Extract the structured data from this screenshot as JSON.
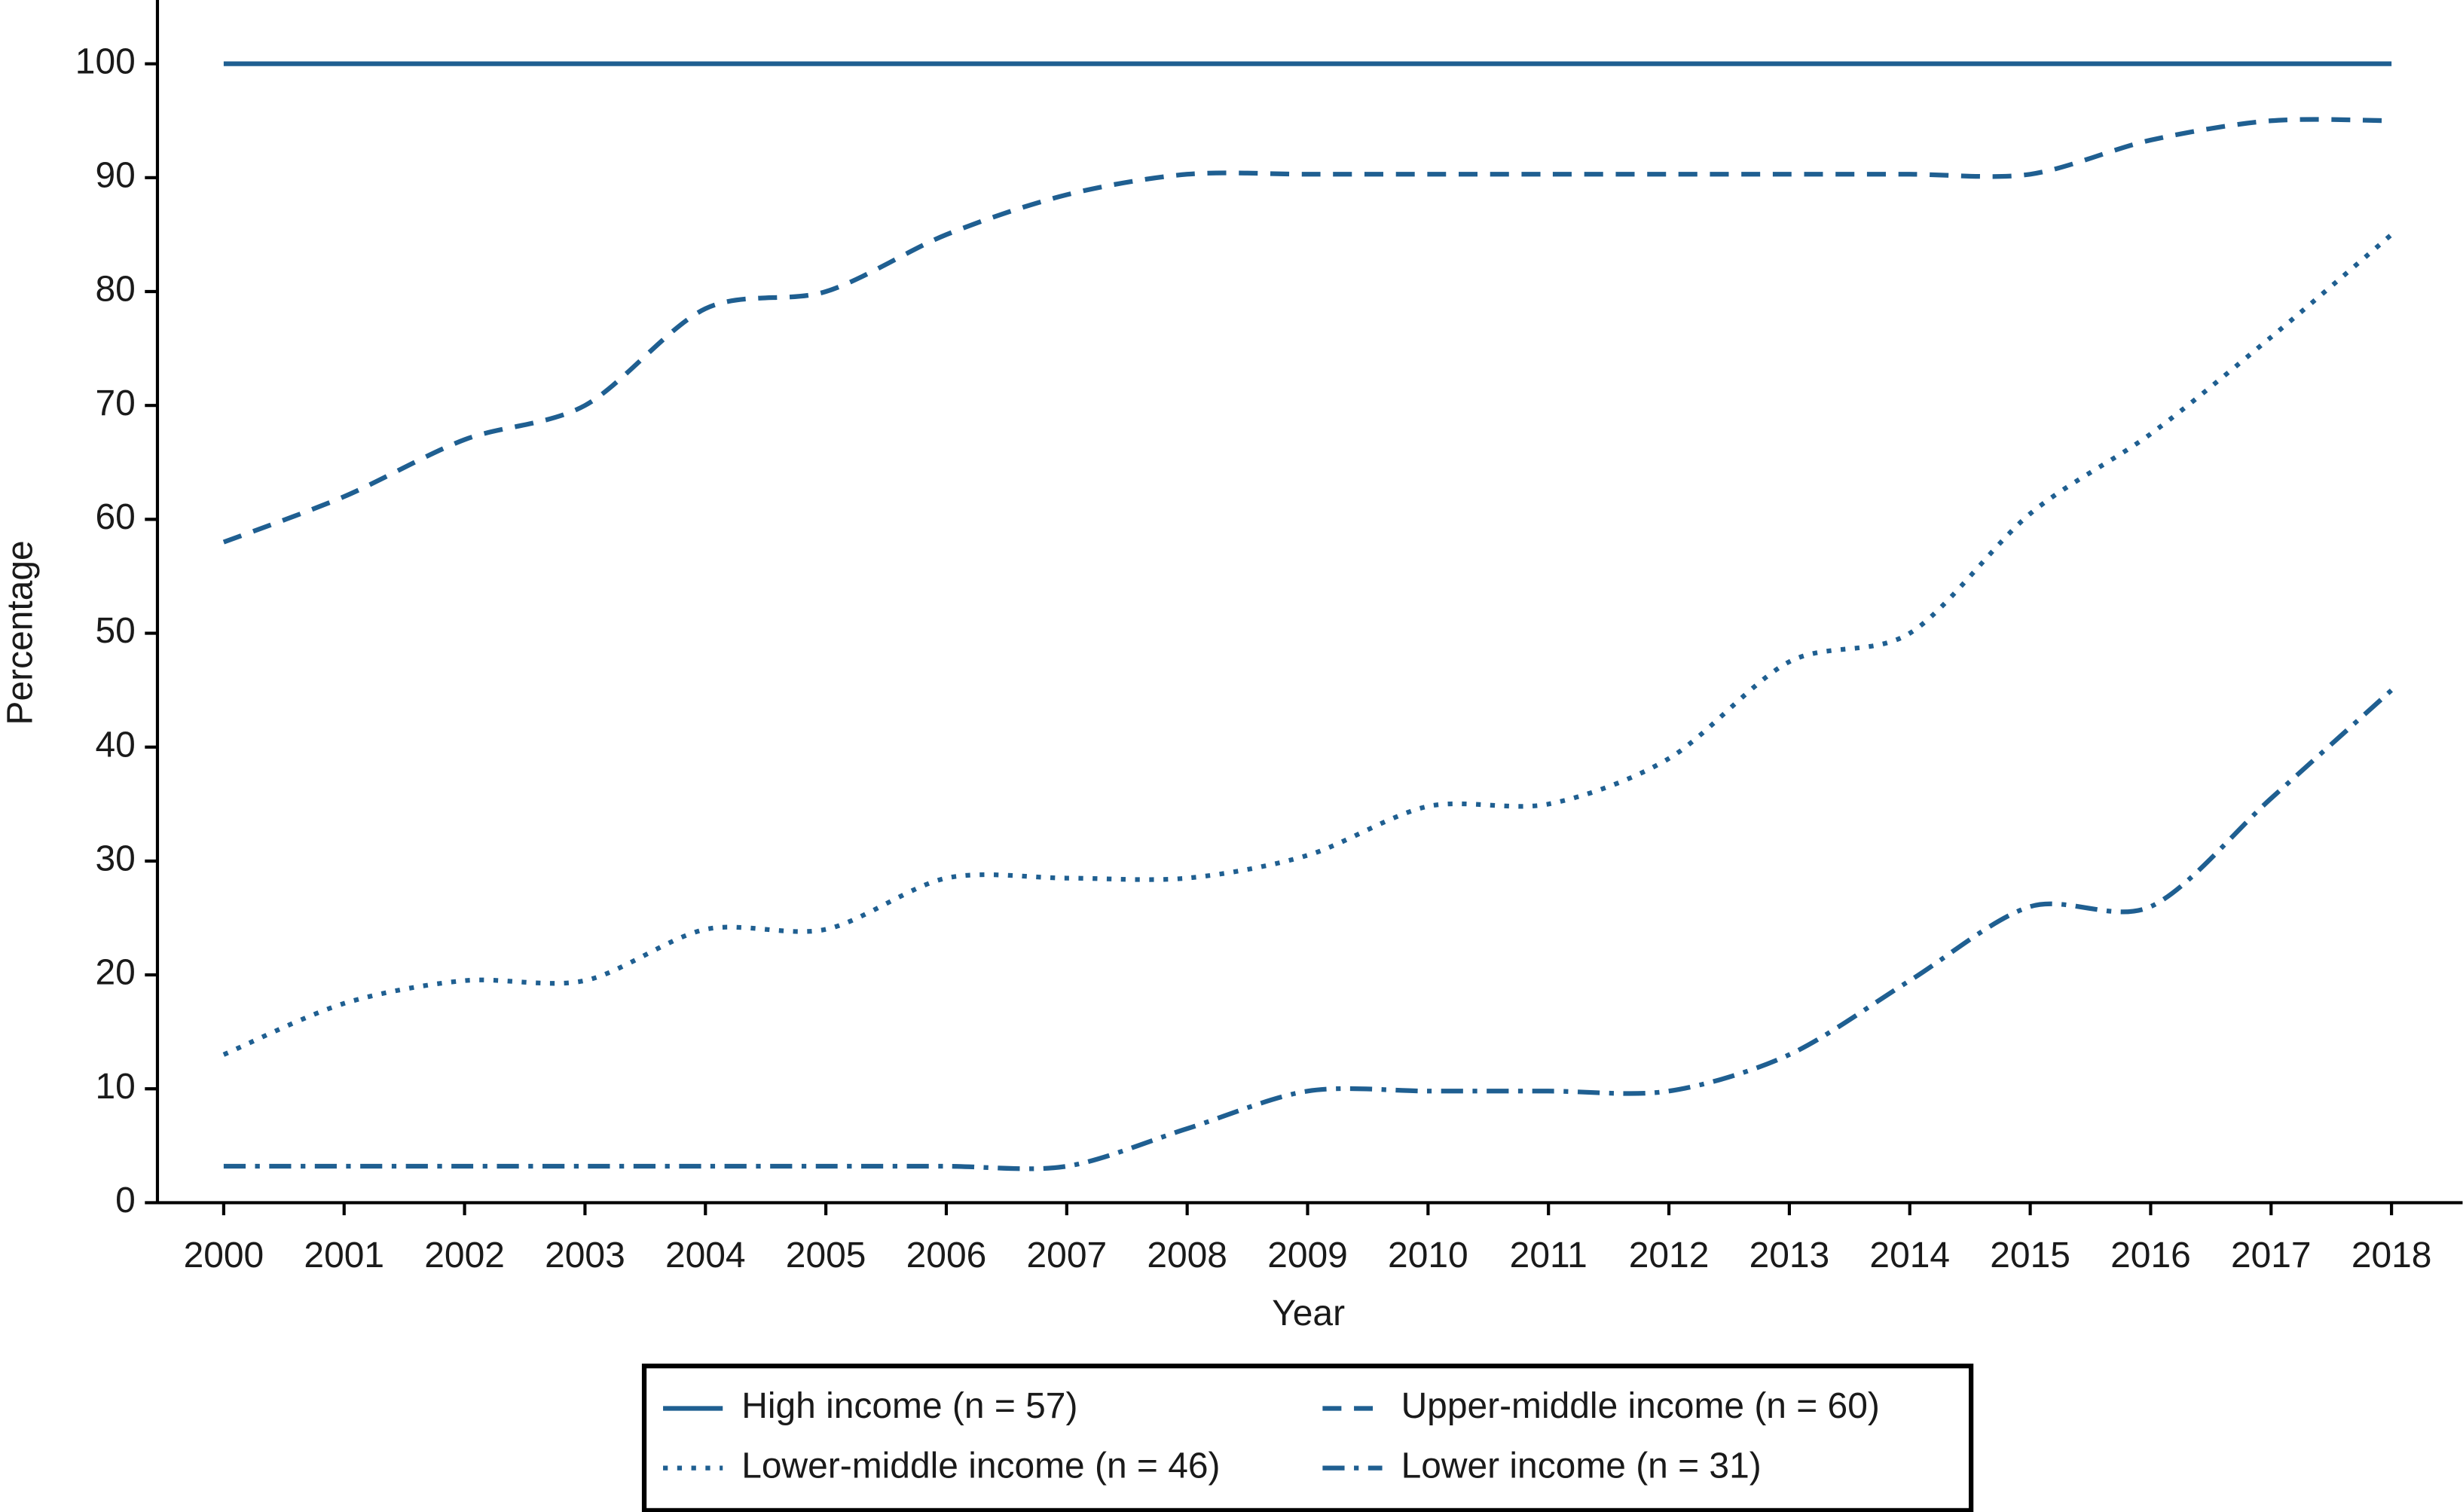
{
  "chart_data": {
    "type": "line",
    "x_label": "Year",
    "y_label": "Percentage",
    "x": [
      2000,
      2001,
      2002,
      2003,
      2004,
      2005,
      2006,
      2007,
      2008,
      2009,
      2010,
      2011,
      2012,
      2013,
      2014,
      2015,
      2016,
      2017,
      2018
    ],
    "xlim": [
      1999.45,
      2018.59
    ],
    "xticks": [
      2000,
      2001,
      2002,
      2003,
      2004,
      2005,
      2006,
      2007,
      2008,
      2009,
      2010,
      2011,
      2012,
      2013,
      2014,
      2015,
      2016,
      2017,
      2018
    ],
    "ylim": [
      0,
      105.6
    ],
    "yticks": [
      0,
      10,
      20,
      30,
      40,
      50,
      60,
      70,
      80,
      90,
      100
    ],
    "legend": "bottom",
    "series": [
      {
        "name": "High income (n = 57)",
        "color": "#1f5f91",
        "linestyle": "solid",
        "values": [
          100,
          100,
          100,
          100,
          100,
          100,
          100,
          100,
          100,
          100,
          100,
          100,
          100,
          100,
          100,
          100,
          100,
          100,
          100
        ]
      },
      {
        "name": "Upper-middle income (n = 60)",
        "color": "#1f5f91",
        "linestyle": "dashed",
        "values": [
          58,
          62,
          67,
          70,
          78.5,
          80,
          85,
          88.5,
          90.3,
          90.3,
          90.3,
          90.3,
          90.3,
          90.3,
          90.3,
          90.3,
          93.3,
          95,
          95
        ]
      },
      {
        "name": "Lower-middle income (n = 46)",
        "color": "#1f5f91",
        "linestyle": "dotted",
        "values": [
          13,
          17.5,
          19.5,
          19.5,
          24,
          24,
          28.5,
          28.5,
          28.5,
          30.5,
          34.8,
          35,
          39,
          47.5,
          50,
          60.5,
          67.5,
          76,
          85
        ]
      },
      {
        "name": "Lower income (n = 31)",
        "color": "#1f5f91",
        "linestyle": "dashdot",
        "values": [
          3.2,
          3.2,
          3.2,
          3.2,
          3.2,
          3.2,
          3.2,
          3.2,
          6.5,
          9.8,
          9.8,
          9.8,
          9.8,
          13,
          19.5,
          26,
          26,
          35.5,
          45
        ]
      }
    ]
  }
}
